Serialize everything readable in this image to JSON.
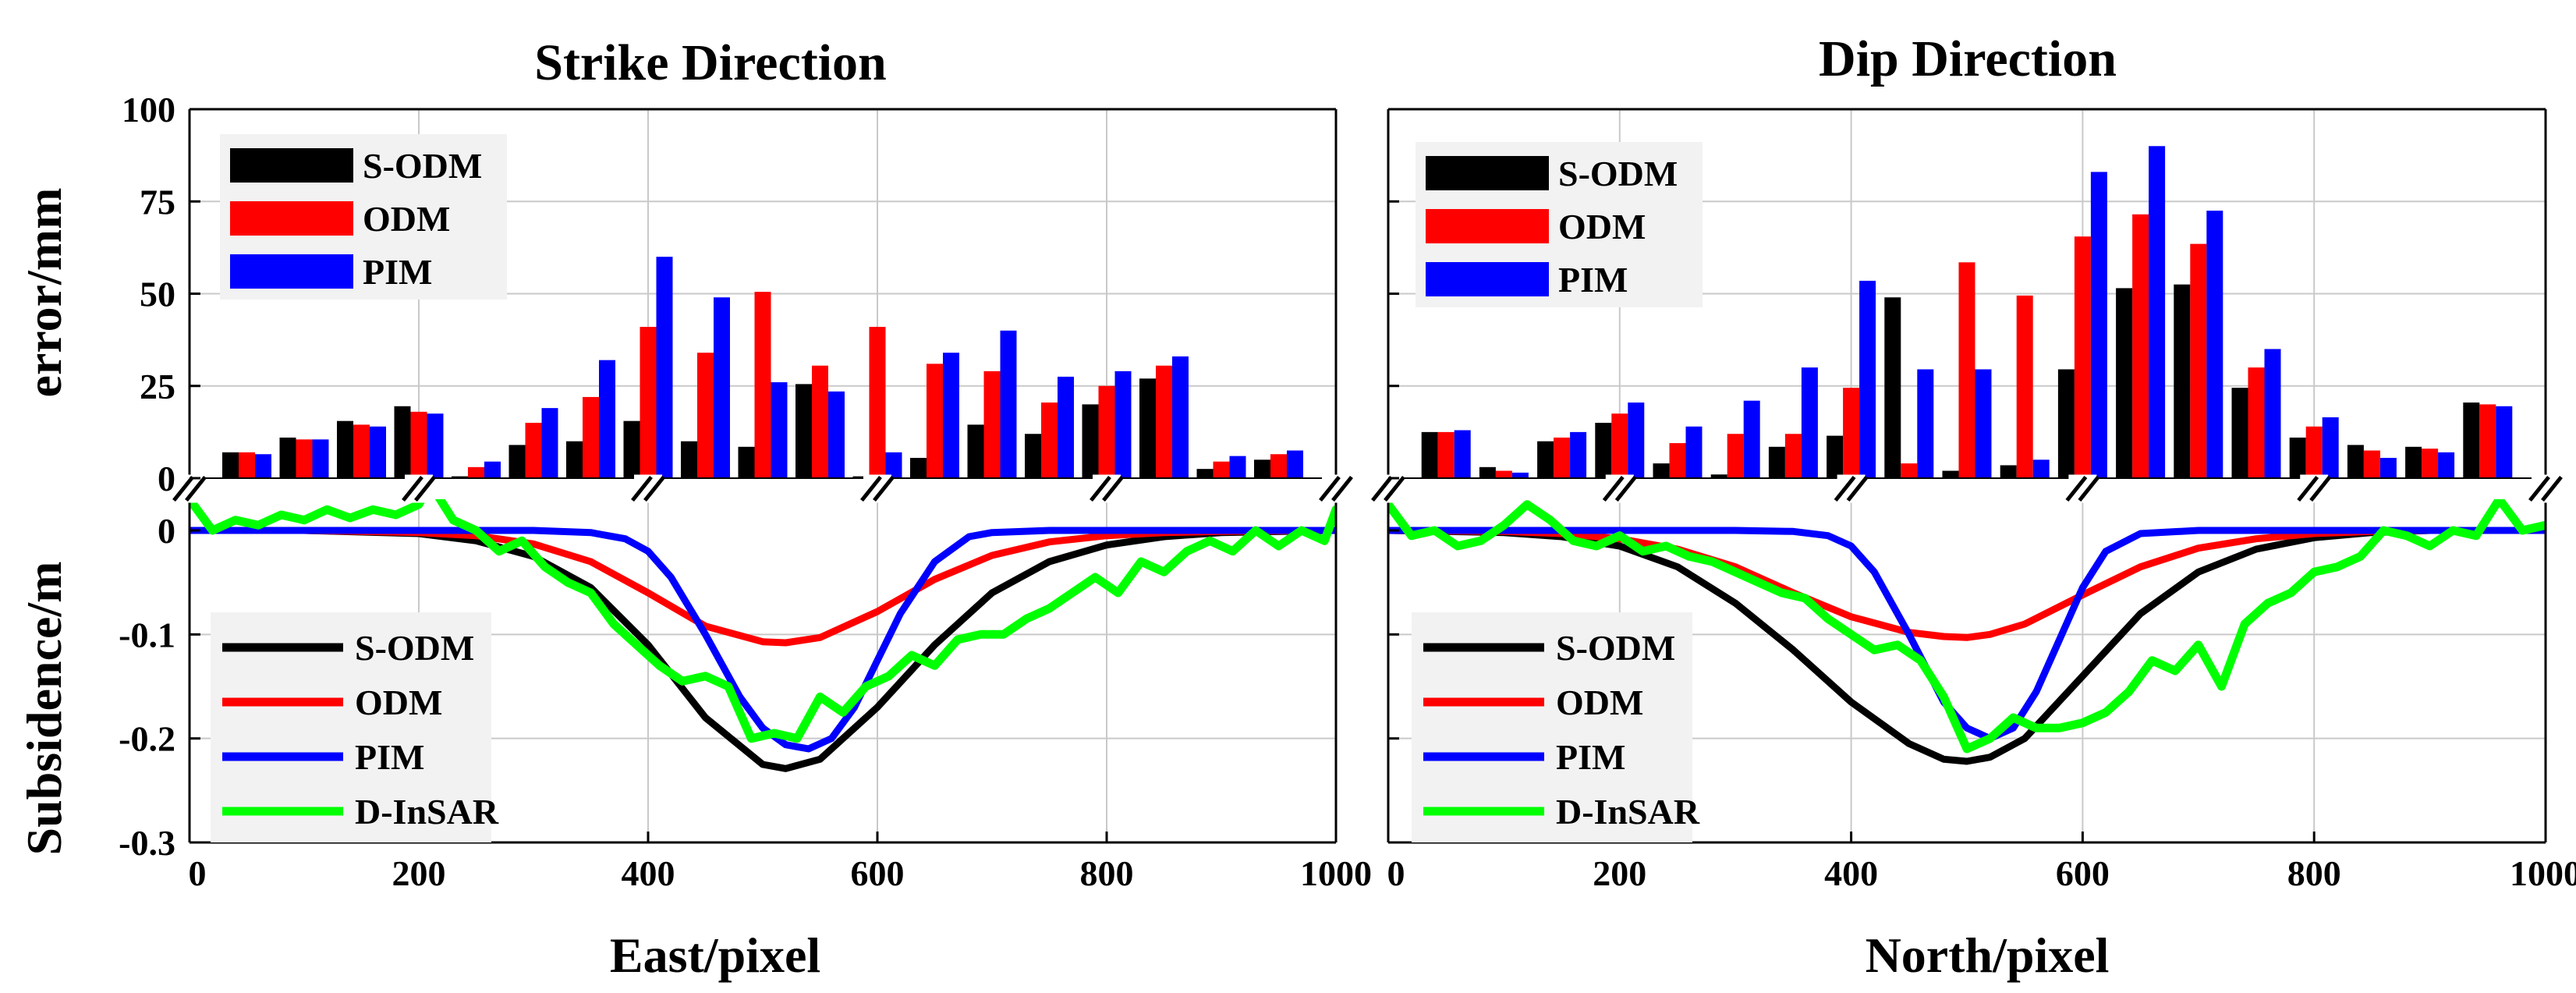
{
  "chart_data": [
    {
      "type": "bar",
      "panel": "strike-error",
      "title": "Strike Direction",
      "ylabel": "error/mm",
      "xlabel": "",
      "ylim": [
        0,
        100
      ],
      "yticks": [
        "0",
        "25",
        "50",
        "75",
        "100"
      ],
      "ytick_values": [
        0,
        25,
        50,
        75,
        100
      ],
      "grid": true,
      "legend_position": "top-left",
      "categories": [
        50,
        100,
        150,
        200,
        250,
        300,
        350,
        400,
        450,
        500,
        550,
        600,
        650,
        700,
        750,
        800,
        850,
        900,
        950
      ],
      "series": [
        {
          "name": "S-ODM",
          "color": "#000000",
          "values": [
            7,
            11,
            15.5,
            19.5,
            0.5,
            9,
            10,
            15.5,
            10,
            8.5,
            25.5,
            0.5,
            5.5,
            14.5,
            12,
            20,
            27,
            2.5,
            5
          ]
        },
        {
          "name": "ODM",
          "color": "#ff0000",
          "values": [
            7,
            10.5,
            14.5,
            18,
            3,
            15,
            22,
            41,
            34,
            50.5,
            30.5,
            41,
            31,
            29,
            20.5,
            25,
            30.5,
            4.5,
            6.5
          ]
        },
        {
          "name": "PIM",
          "color": "#0000ff",
          "values": [
            6.5,
            10.5,
            14,
            17.5,
            4.5,
            19,
            32,
            60,
            49,
            26,
            23.5,
            7,
            34,
            40,
            27.5,
            29,
            33,
            6,
            7.5
          ]
        }
      ]
    },
    {
      "type": "bar",
      "panel": "dip-error",
      "title": "Dip Direction",
      "ylabel": "",
      "xlabel": "",
      "ylim": [
        0,
        100
      ],
      "grid": true,
      "legend_position": "top-left",
      "categories": [
        50,
        100,
        150,
        200,
        250,
        300,
        350,
        400,
        450,
        500,
        550,
        600,
        650,
        700,
        750,
        800,
        850,
        900,
        950
      ],
      "series": [
        {
          "name": "S-ODM",
          "color": "#000000",
          "values": [
            12.5,
            3,
            10,
            15,
            4,
            1,
            8.5,
            11.5,
            49,
            2,
            3.5,
            29.5,
            51.5,
            52.5,
            24.5,
            11,
            9,
            8.5,
            20.5
          ]
        },
        {
          "name": "ODM",
          "color": "#ff0000",
          "values": [
            12.5,
            2,
            11,
            17.5,
            9.5,
            12,
            12,
            24.5,
            4,
            58.5,
            49.5,
            65.5,
            71.5,
            63.5,
            30,
            14,
            7.5,
            8,
            20
          ]
        },
        {
          "name": "PIM",
          "color": "#0000ff",
          "values": [
            13,
            1.5,
            12.5,
            20.5,
            14,
            21,
            30,
            53.5,
            29.5,
            29.5,
            5,
            83,
            90,
            72.5,
            35,
            16.5,
            5.5,
            7,
            19.5
          ]
        }
      ]
    },
    {
      "type": "line",
      "panel": "strike-subsidence",
      "title": "",
      "ylabel": "Subsidence/m",
      "xlabel": "East/pixel",
      "xlim": [
        0,
        1000
      ],
      "ylim": [
        -0.3,
        0.03
      ],
      "xticks": [
        "0",
        "200",
        "400",
        "600",
        "800",
        "1000"
      ],
      "xtick_values": [
        0,
        200,
        400,
        600,
        800,
        1000
      ],
      "yticks": [
        "0",
        "-0.1",
        "-0.2",
        "-0.3"
      ],
      "ytick_values": [
        0,
        -0.1,
        -0.2,
        -0.3
      ],
      "grid": true,
      "legend_position": "bottom-left",
      "series": [
        {
          "name": "S-ODM",
          "color": "#000000",
          "x": [
            0,
            100,
            200,
            250,
            300,
            350,
            400,
            450,
            500,
            520,
            550,
            600,
            650,
            700,
            750,
            800,
            850,
            900,
            1000
          ],
          "y": [
            0,
            0,
            -0.003,
            -0.01,
            -0.025,
            -0.055,
            -0.11,
            -0.18,
            -0.225,
            -0.229,
            -0.22,
            -0.17,
            -0.11,
            -0.06,
            -0.03,
            -0.014,
            -0.006,
            -0.002,
            0
          ]
        },
        {
          "name": "ODM",
          "color": "#ff0000",
          "x": [
            0,
            100,
            200,
            250,
            300,
            350,
            400,
            450,
            500,
            520,
            550,
            600,
            650,
            700,
            750,
            800,
            850,
            900,
            1000
          ],
          "y": [
            0,
            0,
            -0.002,
            -0.005,
            -0.013,
            -0.03,
            -0.06,
            -0.092,
            -0.107,
            -0.108,
            -0.103,
            -0.078,
            -0.047,
            -0.024,
            -0.011,
            -0.005,
            -0.002,
            -0.001,
            0
          ]
        },
        {
          "name": "PIM",
          "color": "#0000ff",
          "x": [
            0,
            100,
            200,
            300,
            350,
            380,
            400,
            420,
            450,
            480,
            500,
            520,
            540,
            560,
            580,
            600,
            620,
            650,
            680,
            700,
            750,
            800,
            1000
          ],
          "y": [
            0,
            0,
            0,
            0,
            -0.002,
            -0.008,
            -0.02,
            -0.045,
            -0.1,
            -0.16,
            -0.19,
            -0.206,
            -0.21,
            -0.2,
            -0.17,
            -0.125,
            -0.08,
            -0.03,
            -0.006,
            -0.002,
            0,
            0,
            0
          ]
        },
        {
          "name": "D-InSAR",
          "color": "#00ff00",
          "x": [
            0,
            20,
            40,
            60,
            80,
            100,
            120,
            140,
            160,
            180,
            200,
            210,
            230,
            250,
            270,
            290,
            310,
            330,
            350,
            370,
            390,
            410,
            430,
            450,
            470,
            490,
            510,
            530,
            550,
            570,
            590,
            610,
            630,
            650,
            670,
            690,
            710,
            730,
            750,
            770,
            790,
            810,
            830,
            850,
            870,
            890,
            910,
            930,
            950,
            970,
            990,
            1000
          ],
          "y": [
            0.03,
            0.0,
            0.01,
            0.005,
            0.015,
            0.01,
            0.02,
            0.012,
            0.02,
            0.015,
            0.025,
            0.045,
            0.01,
            0.0,
            -0.02,
            -0.01,
            -0.035,
            -0.05,
            -0.06,
            -0.09,
            -0.11,
            -0.13,
            -0.145,
            -0.14,
            -0.15,
            -0.2,
            -0.195,
            -0.2,
            -0.16,
            -0.175,
            -0.15,
            -0.14,
            -0.12,
            -0.13,
            -0.105,
            -0.1,
            -0.1,
            -0.085,
            -0.075,
            -0.06,
            -0.045,
            -0.06,
            -0.03,
            -0.04,
            -0.02,
            -0.01,
            -0.02,
            0.0,
            -0.015,
            0.0,
            -0.01,
            0.02
          ]
        }
      ]
    },
    {
      "type": "line",
      "panel": "dip-subsidence",
      "title": "",
      "ylabel": "",
      "xlabel": "North/pixel",
      "xlim": [
        0,
        1000
      ],
      "ylim": [
        -0.3,
        0.03
      ],
      "grid": true,
      "legend_position": "bottom-left",
      "series": [
        {
          "name": "S-ODM",
          "color": "#000000",
          "x": [
            0,
            100,
            150,
            200,
            250,
            300,
            350,
            400,
            450,
            480,
            500,
            520,
            550,
            600,
            650,
            700,
            750,
            800,
            850,
            900,
            1000
          ],
          "y": [
            0,
            -0.002,
            -0.006,
            -0.015,
            -0.035,
            -0.07,
            -0.115,
            -0.165,
            -0.205,
            -0.22,
            -0.222,
            -0.218,
            -0.2,
            -0.14,
            -0.08,
            -0.04,
            -0.018,
            -0.007,
            -0.002,
            0,
            0
          ]
        },
        {
          "name": "ODM",
          "color": "#ff0000",
          "x": [
            0,
            100,
            150,
            200,
            250,
            300,
            350,
            400,
            450,
            480,
            500,
            520,
            550,
            600,
            650,
            700,
            750,
            800,
            850,
            900,
            1000
          ],
          "y": [
            0,
            -0.001,
            -0.003,
            -0.008,
            -0.018,
            -0.035,
            -0.06,
            -0.083,
            -0.098,
            -0.102,
            -0.103,
            -0.1,
            -0.09,
            -0.062,
            -0.035,
            -0.017,
            -0.008,
            -0.003,
            -0.001,
            0,
            0
          ]
        },
        {
          "name": "PIM",
          "color": "#0000ff",
          "x": [
            0,
            100,
            200,
            300,
            350,
            380,
            400,
            420,
            450,
            480,
            500,
            520,
            540,
            560,
            580,
            600,
            620,
            650,
            700,
            800,
            1000
          ],
          "y": [
            0,
            0,
            0,
            0,
            -0.001,
            -0.005,
            -0.015,
            -0.04,
            -0.1,
            -0.165,
            -0.19,
            -0.2,
            -0.19,
            -0.155,
            -0.105,
            -0.055,
            -0.02,
            -0.003,
            0,
            0,
            0
          ]
        },
        {
          "name": "D-InSAR",
          "color": "#00ff00",
          "x": [
            0,
            20,
            40,
            60,
            80,
            100,
            120,
            140,
            160,
            180,
            200,
            220,
            240,
            260,
            280,
            300,
            320,
            340,
            360,
            380,
            400,
            420,
            440,
            460,
            480,
            500,
            520,
            540,
            560,
            580,
            600,
            620,
            640,
            660,
            680,
            700,
            720,
            740,
            760,
            780,
            800,
            820,
            840,
            860,
            880,
            900,
            920,
            940,
            960,
            980,
            1000
          ],
          "y": [
            0.025,
            -0.005,
            0.0,
            -0.015,
            -0.01,
            0.005,
            0.025,
            0.01,
            -0.01,
            -0.015,
            -0.005,
            -0.02,
            -0.015,
            -0.025,
            -0.03,
            -0.04,
            -0.05,
            -0.06,
            -0.065,
            -0.085,
            -0.1,
            -0.115,
            -0.11,
            -0.125,
            -0.16,
            -0.21,
            -0.2,
            -0.18,
            -0.19,
            -0.19,
            -0.185,
            -0.175,
            -0.155,
            -0.125,
            -0.135,
            -0.11,
            -0.15,
            -0.09,
            -0.07,
            -0.06,
            -0.04,
            -0.035,
            -0.025,
            0.0,
            -0.005,
            -0.015,
            0.0,
            -0.005,
            0.03,
            0.0,
            0.005
          ]
        }
      ]
    }
  ]
}
